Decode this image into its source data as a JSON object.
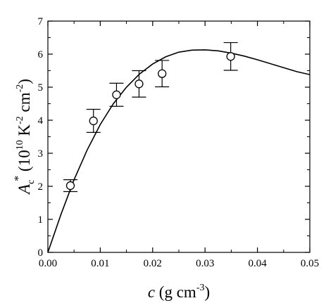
{
  "chart_data": {
    "type": "scatter",
    "xlim": [
      0,
      0.05
    ],
    "ylim": [
      0,
      7
    ],
    "x_ticks": [
      0,
      0.01,
      0.02,
      0.03,
      0.04,
      0.05
    ],
    "x_tick_labels": [
      "0.00",
      "0.01",
      "0.02",
      "0.03",
      "0.04",
      "0.05"
    ],
    "y_ticks": [
      0,
      1,
      2,
      3,
      4,
      5,
      6,
      7
    ],
    "y_tick_labels": [
      "0",
      "1",
      "2",
      "3",
      "4",
      "5",
      "6",
      "7"
    ],
    "xlabel": {
      "symbol": "c",
      "text": " (g cm",
      "sup": "-3",
      "close": ")"
    },
    "ylabel": {
      "symbol": "A",
      "sub": "c",
      "sup": "*",
      "text1": " (10",
      "sup2": "10",
      "text2": " K",
      "sup3": "-2",
      "text3": " cm",
      "sup4": "-2",
      "close": ")"
    },
    "grid": false,
    "series": [
      {
        "type": "scatter",
        "marker": "open-circle",
        "points": [
          {
            "x": 0.0043,
            "y": 2.02,
            "err": 0.18
          },
          {
            "x": 0.0087,
            "y": 3.98,
            "err": 0.35
          },
          {
            "x": 0.0131,
            "y": 4.77,
            "err": 0.35
          },
          {
            "x": 0.0174,
            "y": 5.1,
            "err": 0.4
          },
          {
            "x": 0.0218,
            "y": 5.41,
            "err": 0.4
          },
          {
            "x": 0.0349,
            "y": 5.93,
            "err": 0.42
          }
        ]
      },
      {
        "type": "line",
        "style": "solid",
        "points": [
          {
            "x": 0.0,
            "y": 0.0
          },
          {
            "x": 0.0025,
            "y": 1.15
          },
          {
            "x": 0.005,
            "y": 2.2
          },
          {
            "x": 0.0075,
            "y": 3.1
          },
          {
            "x": 0.01,
            "y": 3.87
          },
          {
            "x": 0.0125,
            "y": 4.5
          },
          {
            "x": 0.015,
            "y": 5.0
          },
          {
            "x": 0.0175,
            "y": 5.4
          },
          {
            "x": 0.02,
            "y": 5.7
          },
          {
            "x": 0.0225,
            "y": 5.92
          },
          {
            "x": 0.025,
            "y": 6.06
          },
          {
            "x": 0.0275,
            "y": 6.12
          },
          {
            "x": 0.03,
            "y": 6.13
          },
          {
            "x": 0.0325,
            "y": 6.1
          },
          {
            "x": 0.035,
            "y": 6.03
          },
          {
            "x": 0.0375,
            "y": 5.94
          },
          {
            "x": 0.04,
            "y": 5.83
          },
          {
            "x": 0.0425,
            "y": 5.71
          },
          {
            "x": 0.045,
            "y": 5.59
          },
          {
            "x": 0.0475,
            "y": 5.47
          },
          {
            "x": 0.05,
            "y": 5.38
          }
        ]
      }
    ]
  }
}
